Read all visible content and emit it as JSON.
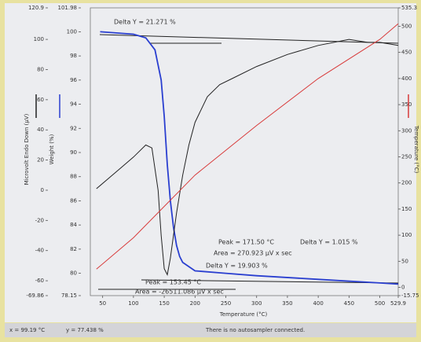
{
  "chart_data": {
    "type": "line",
    "x_label": "Temperature (°C)",
    "y_label": "Microvolt Endo Down (μV)",
    "y2_label": "Weight (%)",
    "y3_label": "Temperature (°C)",
    "xlim": [
      30,
      529.9
    ],
    "xticks": [
      50,
      100,
      150,
      200,
      250,
      300,
      350,
      400,
      450,
      500,
      529.9
    ],
    "ylim": [
      -69.86,
      120.9
    ],
    "yticks": [
      -69.86,
      -60,
      -40,
      -20,
      0,
      20,
      40,
      60,
      80,
      100,
      120.9
    ],
    "y2lim": [
      78.15,
      101.98
    ],
    "y2ticks": [
      78.15,
      80,
      82,
      84,
      86,
      88,
      90,
      92,
      94,
      96,
      98,
      100,
      101.98
    ],
    "y3lim": [
      -15.75,
      535.3
    ],
    "y3ticks": [
      -15.75,
      0,
      50,
      100,
      150,
      200,
      250,
      300,
      350,
      400,
      450,
      500,
      535.3
    ],
    "series": [
      {
        "axis": "y2",
        "color": "#2a3fd0",
        "x": [
          46,
          100,
          120,
          135,
          145,
          150,
          155,
          160,
          165,
          170,
          175,
          180,
          200,
          250,
          300,
          400,
          500,
          529.9
        ],
        "values": [
          100,
          99.8,
          99.5,
          98.5,
          96,
          93,
          89,
          86,
          83.8,
          82.3,
          81.4,
          80.9,
          80.2,
          80.0,
          79.8,
          79.5,
          79.2,
          79.1
        ]
      },
      {
        "axis": "y",
        "color": "#222222",
        "x": [
          40,
          60,
          80,
          100,
          120,
          130,
          140,
          145,
          150,
          155,
          160,
          170,
          180,
          190,
          200,
          220,
          240,
          260,
          300,
          350,
          400,
          450,
          480,
          500,
          529.9
        ],
        "values": [
          1,
          8,
          15,
          22,
          30,
          28,
          0,
          -30,
          -52,
          -56,
          -45,
          -15,
          10,
          30,
          45,
          62,
          70,
          74,
          82,
          90,
          96,
          100,
          98,
          98,
          96
        ]
      },
      {
        "axis": "y3",
        "color": "#d83a3a",
        "x": [
          40,
          100,
          200,
          300,
          400,
          500,
          529.9
        ],
        "values": [
          35,
          95,
          215,
          310,
          400,
          475,
          505
        ]
      }
    ],
    "annotations": [
      "Delta Y = 21.271 %",
      "Peak = 171.50 °C",
      "Area = 270.923 μV x sec",
      "Delta Y = 19.903 %",
      "Delta Y = 1.015 %",
      "Peak = 153.45 °C",
      "Area = -26511.086 μV x sec"
    ],
    "status": [
      "x = 99.19 °C",
      "y = 77.438 %",
      "There is no autosampler connected."
    ]
  }
}
